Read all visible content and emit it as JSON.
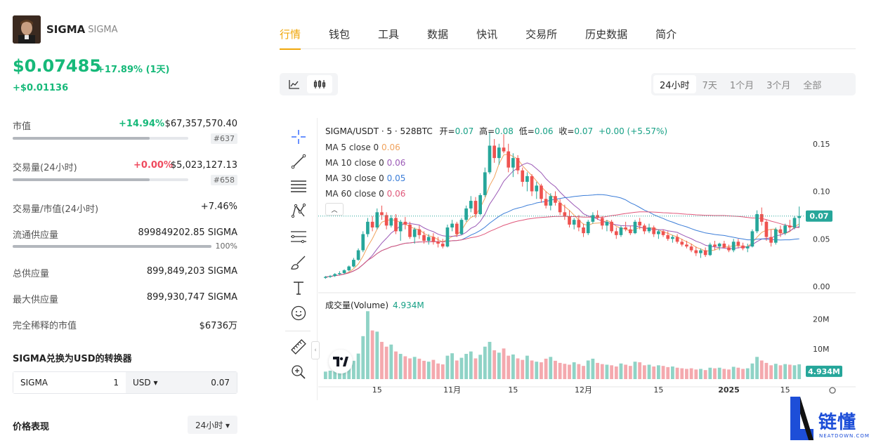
{
  "coin": {
    "name": "SIGMA",
    "symbol": "SIGMA",
    "price": "$0.07485",
    "change_pct": "+17.89% (1天)",
    "change_abs": "+$0.01136"
  },
  "stats": {
    "market_cap": {
      "label": "市值",
      "pct": "+14.94%",
      "value": "$67,357,570.40",
      "rank": "#637",
      "bar_fill": 0.78
    },
    "volume": {
      "label": "交易量(24小时)",
      "pct": "+0.00%",
      "value": "$5,023,127.13",
      "rank": "#658",
      "bar_fill": 0.78
    },
    "vol_mcap": {
      "label": "交易量/市值(24小时)",
      "value": "+7.46%"
    },
    "circulating": {
      "label": "流通供应量",
      "value": "899849202.85 SIGMA",
      "pct": "100%",
      "bar_fill": 1.0
    },
    "total_supply": {
      "label": "总供应量",
      "value": "899,849,203 SIGMA"
    },
    "max_supply": {
      "label": "最大供应量",
      "value": "899,930,747 SIGMA"
    },
    "fdv": {
      "label": "完全稀释的市值",
      "value": "$6736万"
    }
  },
  "converter": {
    "title": "SIGMA兑换为USD的转换器",
    "from_symbol": "SIGMA",
    "from_amount": "1",
    "to_symbol": "USD ▾",
    "to_amount": "0.07"
  },
  "performance": {
    "title": "价格表现",
    "period": "24小时 ▾"
  },
  "tabs": [
    "行情",
    "钱包",
    "工具",
    "数据",
    "快讯",
    "交易所",
    "历史数据",
    "简介"
  ],
  "range_options": [
    "24小时",
    "7天",
    "1个月",
    "3个月",
    "全部"
  ],
  "chart_legend": {
    "pair": "SIGMA/USDT · 5 · 528BTC",
    "open_label": "开=",
    "open": "0.07",
    "high_label": "高=",
    "high": "0.08",
    "low_label": "低=",
    "low": "0.06",
    "close_label": "收=",
    "close": "0.07",
    "change": "+0.00 (+5.57%)",
    "ma": [
      {
        "label": "MA 5 close 0",
        "value": "0.06",
        "color": "#f0a35e"
      },
      {
        "label": "MA 10 close 0",
        "value": "0.06",
        "color": "#9b59b6"
      },
      {
        "label": "MA 30 close 0",
        "value": "0.05",
        "color": "#3b7dd8"
      },
      {
        "label": "MA 60 close 0",
        "value": "0.06",
        "color": "#e0577a"
      }
    ],
    "volume_label": "成交量(Volume)",
    "volume_value": "4.934M"
  },
  "brand": {
    "name": "链懂",
    "url": "NEATDOWN.COM"
  },
  "colors": {
    "up": "#26a69a",
    "down": "#ef5350",
    "accent": "#f0a70a",
    "green": "#16b979"
  },
  "chart_data": {
    "type": "candlestick",
    "price_axis": {
      "ticks": [
        "0.15",
        "0.10",
        "0.05",
        "0.00"
      ],
      "range": [
        0,
        0.155
      ],
      "last": "0.07"
    },
    "volume_axis": {
      "ticks": [
        "20M",
        "10M"
      ],
      "range": [
        0,
        25
      ],
      "last": "4.934M"
    },
    "x_labels": [
      "15",
      "11月",
      "15",
      "12月",
      "15",
      "2025",
      "15"
    ],
    "candles": [
      [
        0.009,
        0.011,
        0.008,
        0.01
      ],
      [
        0.01,
        0.012,
        0.009,
        0.011
      ],
      [
        0.011,
        0.014,
        0.01,
        0.013
      ],
      [
        0.013,
        0.016,
        0.012,
        0.014
      ],
      [
        0.014,
        0.018,
        0.013,
        0.017
      ],
      [
        0.017,
        0.022,
        0.016,
        0.021
      ],
      [
        0.021,
        0.03,
        0.02,
        0.028
      ],
      [
        0.028,
        0.04,
        0.027,
        0.038
      ],
      [
        0.038,
        0.058,
        0.036,
        0.055
      ],
      [
        0.055,
        0.072,
        0.052,
        0.068
      ],
      [
        0.068,
        0.074,
        0.058,
        0.062
      ],
      [
        0.062,
        0.082,
        0.06,
        0.078
      ],
      [
        0.078,
        0.085,
        0.07,
        0.075
      ],
      [
        0.075,
        0.078,
        0.06,
        0.064
      ],
      [
        0.064,
        0.075,
        0.062,
        0.072
      ],
      [
        0.072,
        0.076,
        0.055,
        0.058
      ],
      [
        0.058,
        0.07,
        0.048,
        0.068
      ],
      [
        0.068,
        0.073,
        0.06,
        0.065
      ],
      [
        0.065,
        0.068,
        0.05,
        0.052
      ],
      [
        0.052,
        0.062,
        0.045,
        0.06
      ],
      [
        0.06,
        0.064,
        0.05,
        0.054
      ],
      [
        0.054,
        0.058,
        0.045,
        0.048
      ],
      [
        0.048,
        0.055,
        0.044,
        0.052
      ],
      [
        0.052,
        0.056,
        0.044,
        0.047
      ],
      [
        0.047,
        0.052,
        0.041,
        0.045
      ],
      [
        0.045,
        0.05,
        0.04,
        0.042
      ],
      [
        0.042,
        0.065,
        0.041,
        0.062
      ],
      [
        0.062,
        0.07,
        0.058,
        0.066
      ],
      [
        0.066,
        0.068,
        0.052,
        0.055
      ],
      [
        0.055,
        0.072,
        0.054,
        0.07
      ],
      [
        0.07,
        0.085,
        0.068,
        0.082
      ],
      [
        0.082,
        0.095,
        0.078,
        0.09
      ],
      [
        0.09,
        0.094,
        0.072,
        0.076
      ],
      [
        0.076,
        0.098,
        0.075,
        0.096
      ],
      [
        0.096,
        0.125,
        0.094,
        0.12
      ],
      [
        0.12,
        0.162,
        0.118,
        0.148
      ],
      [
        0.148,
        0.155,
        0.13,
        0.135
      ],
      [
        0.135,
        0.15,
        0.128,
        0.146
      ],
      [
        0.146,
        0.16,
        0.14,
        0.142
      ],
      [
        0.142,
        0.15,
        0.12,
        0.125
      ],
      [
        0.125,
        0.14,
        0.115,
        0.135
      ],
      [
        0.135,
        0.138,
        0.118,
        0.122
      ],
      [
        0.122,
        0.125,
        0.105,
        0.11
      ],
      [
        0.11,
        0.12,
        0.1,
        0.116
      ],
      [
        0.116,
        0.118,
        0.095,
        0.1
      ],
      [
        0.1,
        0.11,
        0.092,
        0.106
      ],
      [
        0.106,
        0.108,
        0.088,
        0.092
      ],
      [
        0.092,
        0.1,
        0.082,
        0.085
      ],
      [
        0.085,
        0.098,
        0.08,
        0.095
      ],
      [
        0.095,
        0.1,
        0.085,
        0.088
      ],
      [
        0.088,
        0.092,
        0.075,
        0.078
      ],
      [
        0.078,
        0.086,
        0.07,
        0.074
      ],
      [
        0.074,
        0.08,
        0.062,
        0.065
      ],
      [
        0.065,
        0.072,
        0.06,
        0.07
      ],
      [
        0.07,
        0.075,
        0.058,
        0.062
      ],
      [
        0.062,
        0.066,
        0.052,
        0.056
      ],
      [
        0.056,
        0.07,
        0.054,
        0.068
      ],
      [
        0.068,
        0.078,
        0.066,
        0.075
      ],
      [
        0.075,
        0.08,
        0.07,
        0.072
      ],
      [
        0.072,
        0.074,
        0.06,
        0.064
      ],
      [
        0.064,
        0.07,
        0.058,
        0.068
      ],
      [
        0.068,
        0.07,
        0.056,
        0.058
      ],
      [
        0.058,
        0.062,
        0.05,
        0.054
      ],
      [
        0.054,
        0.064,
        0.052,
        0.062
      ],
      [
        0.062,
        0.068,
        0.058,
        0.06
      ],
      [
        0.06,
        0.064,
        0.054,
        0.056
      ],
      [
        0.056,
        0.07,
        0.055,
        0.068
      ],
      [
        0.068,
        0.072,
        0.06,
        0.064
      ],
      [
        0.064,
        0.066,
        0.055,
        0.058
      ],
      [
        0.058,
        0.066,
        0.056,
        0.062
      ],
      [
        0.062,
        0.064,
        0.052,
        0.055
      ],
      [
        0.055,
        0.06,
        0.05,
        0.058
      ],
      [
        0.058,
        0.06,
        0.052,
        0.054
      ],
      [
        0.054,
        0.058,
        0.048,
        0.05
      ],
      [
        0.05,
        0.054,
        0.046,
        0.052
      ],
      [
        0.052,
        0.055,
        0.045,
        0.047
      ],
      [
        0.047,
        0.05,
        0.042,
        0.044
      ],
      [
        0.044,
        0.048,
        0.04,
        0.042
      ],
      [
        0.042,
        0.045,
        0.036,
        0.038
      ],
      [
        0.038,
        0.042,
        0.032,
        0.035
      ],
      [
        0.035,
        0.04,
        0.03,
        0.038
      ],
      [
        0.038,
        0.041,
        0.031,
        0.033
      ],
      [
        0.033,
        0.046,
        0.032,
        0.044
      ],
      [
        0.044,
        0.048,
        0.038,
        0.042
      ],
      [
        0.042,
        0.046,
        0.038,
        0.045
      ],
      [
        0.045,
        0.048,
        0.04,
        0.041
      ],
      [
        0.041,
        0.044,
        0.036,
        0.038
      ],
      [
        0.038,
        0.05,
        0.036,
        0.047
      ],
      [
        0.047,
        0.05,
        0.04,
        0.043
      ],
      [
        0.043,
        0.046,
        0.038,
        0.04
      ],
      [
        0.04,
        0.045,
        0.036,
        0.042
      ],
      [
        0.042,
        0.06,
        0.041,
        0.058
      ],
      [
        0.058,
        0.08,
        0.056,
        0.076
      ],
      [
        0.076,
        0.083,
        0.064,
        0.068
      ],
      [
        0.068,
        0.07,
        0.048,
        0.052
      ],
      [
        0.052,
        0.06,
        0.042,
        0.046
      ],
      [
        0.046,
        0.062,
        0.044,
        0.06
      ],
      [
        0.06,
        0.064,
        0.052,
        0.056
      ],
      [
        0.056,
        0.066,
        0.054,
        0.064
      ],
      [
        0.064,
        0.07,
        0.058,
        0.062
      ],
      [
        0.062,
        0.074,
        0.06,
        0.072
      ],
      [
        0.072,
        0.084,
        0.062,
        0.074
      ]
    ],
    "volumes": [
      2.5,
      2.8,
      3.1,
      2.9,
      3.4,
      4.2,
      6.1,
      8.5,
      14.3,
      22.6,
      16.2,
      15.8,
      12.4,
      10.8,
      11.5,
      9.2,
      8.4,
      7.6,
      6.9,
      7.4,
      6.8,
      6.1,
      5.8,
      6.4,
      5.2,
      4.9,
      7.8,
      8.6,
      6.2,
      7.1,
      8.4,
      9.2,
      6.9,
      8.1,
      10.8,
      12.4,
      9.6,
      8.8,
      10.2,
      7.8,
      8.2,
      6.9,
      6.4,
      7.8,
      6.2,
      5.8,
      5.6,
      6.8,
      7.4,
      6.1,
      5.4,
      5.1,
      4.8,
      5.6,
      5.0,
      4.4,
      6.2,
      6.8,
      5.4,
      5.0,
      4.8,
      4.6,
      4.2,
      5.2,
      4.8,
      4.4,
      5.8,
      5.6,
      4.6,
      4.8,
      4.2,
      4.6,
      4.4,
      4.0,
      4.2,
      3.8,
      3.6,
      3.4,
      3.6,
      3.2,
      3.4,
      3.0,
      3.8,
      3.6,
      3.8,
      3.4,
      3.2,
      4.1,
      3.8,
      3.4,
      3.6,
      5.2,
      7.4,
      6.2,
      5.4,
      4.6,
      5.1,
      4.6,
      5.0,
      4.8,
      4.6,
      4.934
    ]
  }
}
